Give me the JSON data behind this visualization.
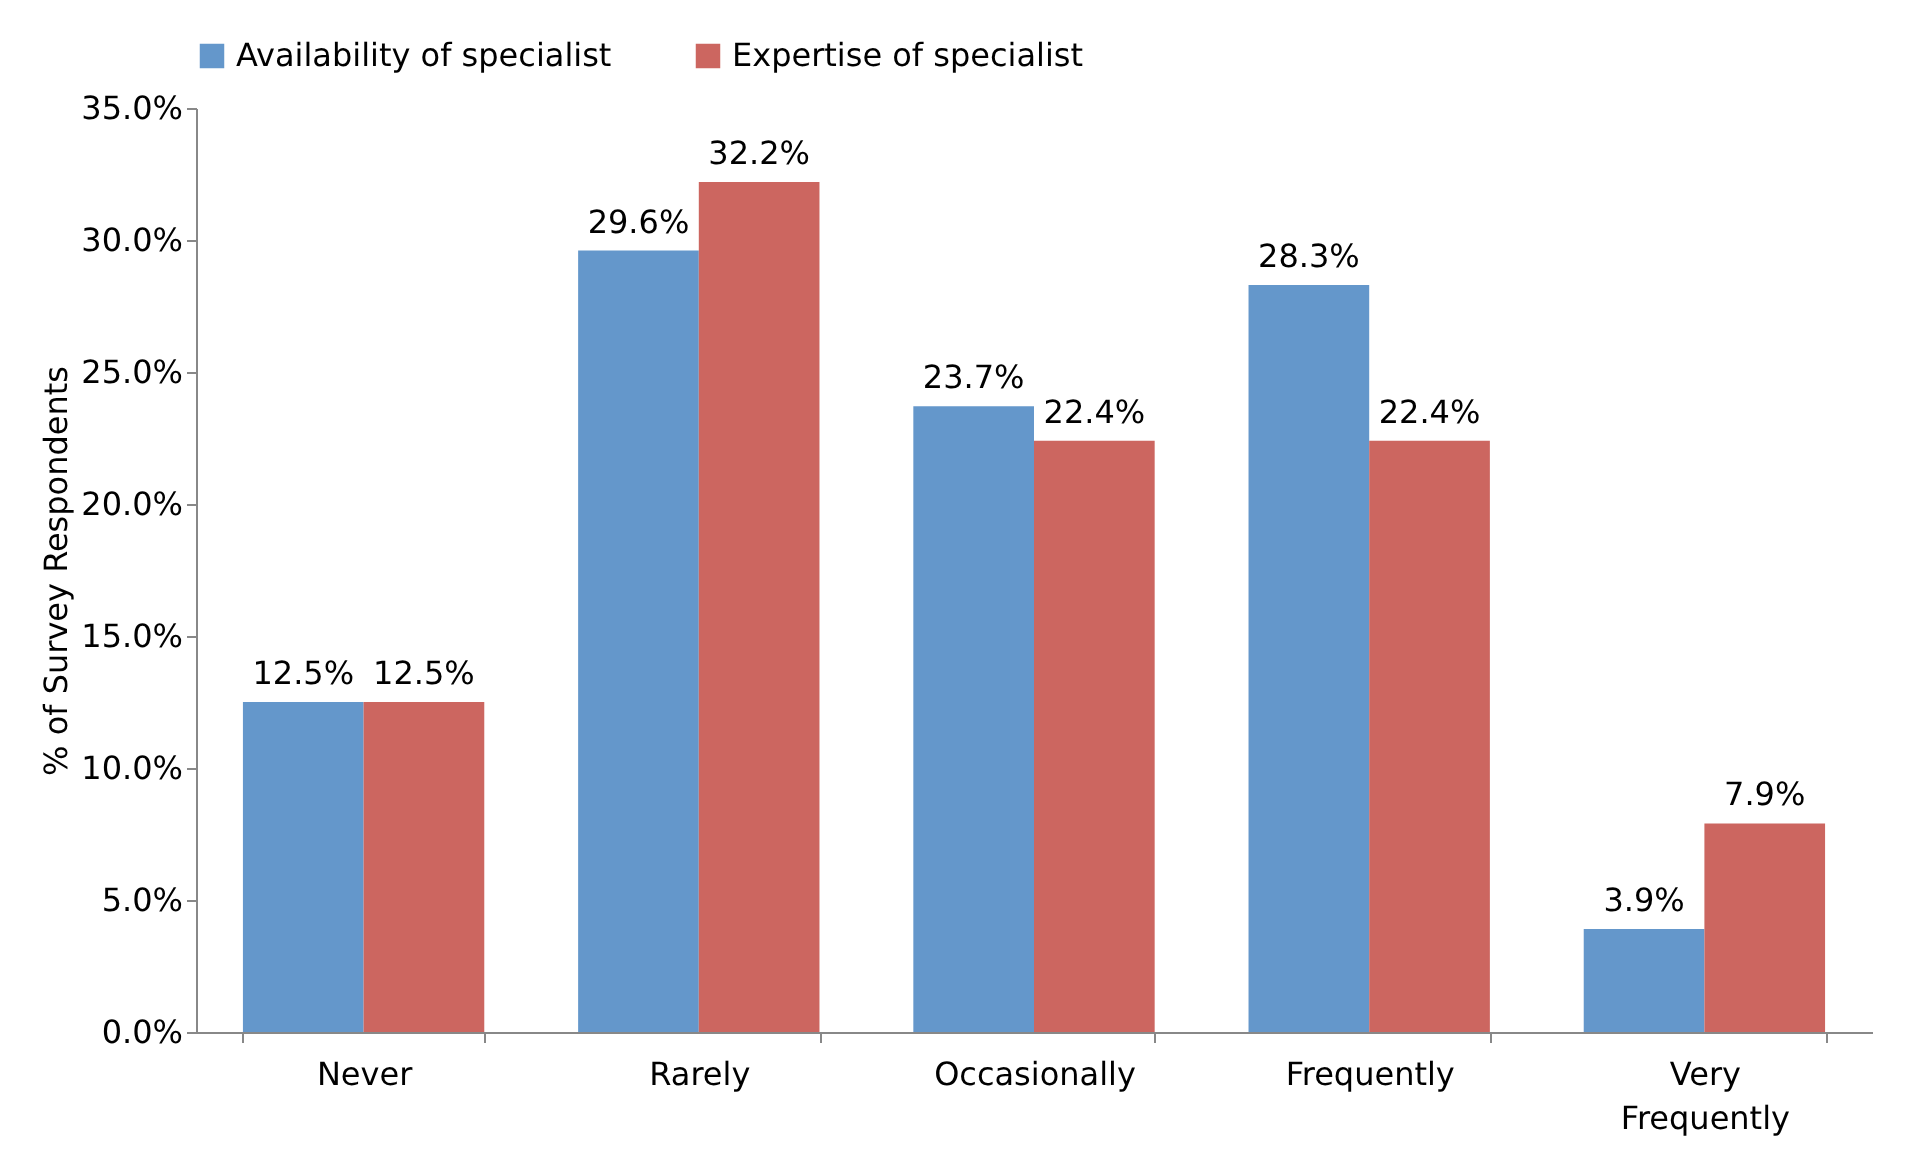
{
  "chart_data": {
    "type": "bar",
    "ylabel": "% of Survey Respondents",
    "categories": [
      "Never",
      "Rarely",
      "Occasionally",
      "Frequently",
      "Very Frequently"
    ],
    "series": [
      {
        "name": "Availability of specialist",
        "color": "#6497cb",
        "values": [
          12.5,
          29.6,
          23.7,
          28.3,
          3.9
        ],
        "value_labels": [
          "12.5%",
          "29.6%",
          "23.7%",
          "28.3%",
          "3.9%"
        ]
      },
      {
        "name": "Expertise of specialist",
        "color": "#cc6660",
        "values": [
          12.5,
          32.2,
          22.4,
          22.4,
          7.9
        ],
        "value_labels": [
          "12.5%",
          "32.2%",
          "22.4%",
          "22.4%",
          "7.9%"
        ]
      }
    ],
    "ylim": [
      0,
      35
    ],
    "yticks": [
      {
        "value": 0,
        "label": "0.0%"
      },
      {
        "value": 5,
        "label": "5.0%"
      },
      {
        "value": 10,
        "label": "10.0%"
      },
      {
        "value": 15,
        "label": "15.0%"
      },
      {
        "value": 20,
        "label": "20.0%"
      },
      {
        "value": 25,
        "label": "25.0%"
      },
      {
        "value": 30,
        "label": "30.0%"
      },
      {
        "value": 35,
        "label": "35.0%"
      }
    ],
    "grid": false,
    "legend": "top"
  }
}
